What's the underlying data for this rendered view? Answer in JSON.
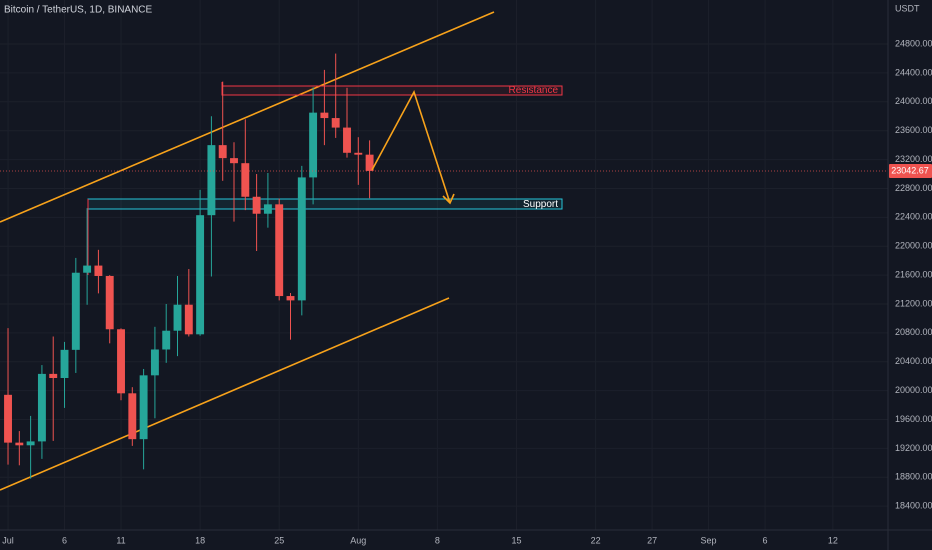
{
  "chart_data": {
    "type": "candlestick",
    "title": "Bitcoin / TetherUS, 1D, BINANCE",
    "y_axis_label": "USDT",
    "annotations": [
      "Resistance",
      "Support"
    ],
    "x": [
      1,
      2,
      3,
      4,
      5,
      6,
      7,
      8,
      9,
      10,
      11,
      12,
      13,
      14,
      15,
      16,
      17,
      18,
      19,
      20,
      21,
      22,
      23,
      24,
      25,
      26,
      27,
      28,
      29,
      30,
      31,
      32,
      33
    ],
    "open": [
      19942,
      19280,
      19243,
      19297,
      20232,
      20175,
      20565,
      21633,
      21732,
      21588,
      20850,
      19963,
      19328,
      20212,
      20570,
      20830,
      21190,
      20780,
      22430,
      23400,
      23220,
      23150,
      22685,
      22450,
      22580,
      21310,
      21250,
      22953,
      23850,
      23775,
      23643,
      23294,
      23268
    ],
    "high": [
      20865,
      19440,
      19650,
      20354,
      20750,
      20675,
      21838,
      22527,
      21950,
      21600,
      20863,
      20048,
      20300,
      20884,
      21200,
      21588,
      21684,
      22780,
      23800,
      24280,
      23440,
      23757,
      23000,
      23014,
      22660,
      21352,
      23112,
      24200,
      24442,
      24668,
      24194,
      23510,
      23466
    ],
    "low": [
      18975,
      18966,
      18781,
      19055,
      19304,
      19761,
      20245,
      21189,
      21347,
      20655,
      19867,
      19235,
      18910,
      19617,
      20385,
      20478,
      20750,
      20760,
      21580,
      22906,
      22341,
      22500,
      21934,
      22257,
      21250,
      20706,
      21043,
      22580,
      23400,
      23500,
      23227,
      22850,
      22665
    ],
    "close": [
      19280,
      19243,
      19297,
      20232,
      20175,
      20565,
      21633,
      21732,
      21588,
      20850,
      19963,
      19328,
      20212,
      20570,
      20830,
      21190,
      20780,
      22430,
      23400,
      23220,
      23150,
      22685,
      22450,
      22580,
      21310,
      21250,
      22953,
      23850,
      23775,
      23643,
      23294,
      23268,
      23043
    ],
    "up_color": "#26a69a",
    "down_color": "#ef5350",
    "last_price": 23042.67,
    "xlim": [
      0.29,
      78.88
    ],
    "xticks": [
      {
        "value": 1,
        "label": "Jul"
      },
      6,
      11,
      18,
      25,
      {
        "value": 32,
        "label": "Aug"
      },
      {
        "value": 39,
        "label": "8"
      },
      {
        "value": 46,
        "label": "15"
      },
      {
        "value": 53,
        "label": "22"
      },
      {
        "value": 58,
        "label": "27"
      },
      {
        "value": 63,
        "label": "Sep"
      },
      {
        "value": 68,
        "label": "6"
      },
      {
        "value": 74,
        "label": "12"
      }
    ],
    "ylim": [
      18070,
      25410
    ],
    "yticks": [
      {
        "value": 18400,
        "label": "18400.00"
      },
      {
        "value": 18800,
        "label": "18800.00"
      },
      {
        "value": 19200,
        "label": "19200.00"
      },
      {
        "value": 19600,
        "label": "19600.00"
      },
      {
        "value": 20000,
        "label": "20000.00"
      },
      {
        "value": 20400,
        "label": "20400.00"
      },
      {
        "value": 20800,
        "label": "20800.00"
      },
      {
        "value": 21200,
        "label": "21200.00"
      },
      {
        "value": 21600,
        "label": "21600.00"
      },
      {
        "value": 22000,
        "label": "22000.00"
      },
      {
        "value": 22400,
        "label": "22400.00"
      },
      {
        "value": 22800,
        "label": "22800.00"
      },
      {
        "value": 23200,
        "label": "23200.00"
      },
      {
        "value": 23600,
        "label": "23600.00"
      },
      {
        "value": 24000,
        "label": "24000.00"
      },
      {
        "value": 24400,
        "label": "24400.00"
      },
      {
        "value": 24800,
        "label": "24800.00"
      }
    ],
    "grid": true
  }
}
